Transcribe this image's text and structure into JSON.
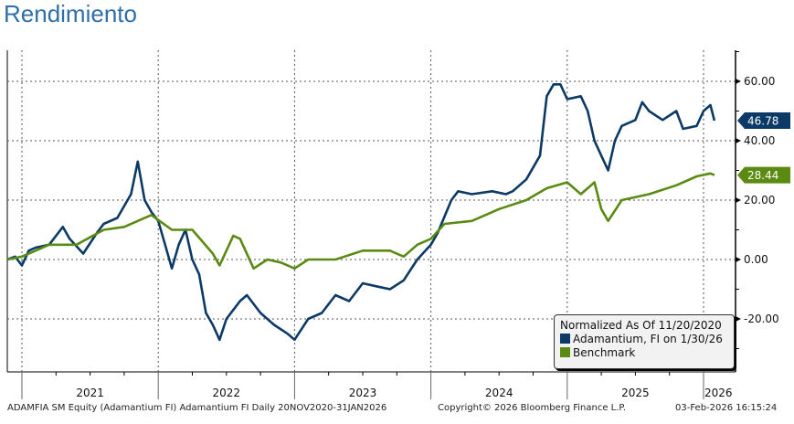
{
  "chart_data": {
    "type": "line",
    "title": "Rendimiento",
    "x_tick_labels": [
      "2021",
      "2022",
      "2023",
      "2024",
      "2025",
      "2026"
    ],
    "y_tick_labels": [
      "60.00",
      "40.00",
      "20.00",
      "0.00",
      "-20.00"
    ],
    "y_ticks": [
      60,
      40,
      20,
      0,
      -20
    ],
    "ylim": [
      -37,
      72
    ],
    "xlim": [
      2020.89,
      2026.19
    ],
    "grid": true,
    "legend": {
      "placement": "bottom-right",
      "title": "Normalized As Of 11/20/2020",
      "entries": [
        "Adamantium, FI on 1/30/26",
        "Benchmark"
      ]
    },
    "series": [
      {
        "name": "Adamantium, FI on 1/30/26",
        "color": "#0b3a66",
        "last_label": "46.78",
        "x": [
          2020.89,
          2020.95,
          2021.0,
          2021.05,
          2021.1,
          2021.2,
          2021.3,
          2021.35,
          2021.45,
          2021.55,
          2021.6,
          2021.7,
          2021.75,
          2021.8,
          2021.85,
          2021.9,
          2021.95,
          2022.0,
          2022.05,
          2022.1,
          2022.15,
          2022.2,
          2022.25,
          2022.3,
          2022.35,
          2022.4,
          2022.45,
          2022.5,
          2022.6,
          2022.65,
          2022.75,
          2022.85,
          2022.95,
          2023.0,
          2023.1,
          2023.2,
          2023.3,
          2023.4,
          2023.5,
          2023.6,
          2023.7,
          2023.8,
          2023.9,
          2024.0,
          2024.05,
          2024.15,
          2024.2,
          2024.3,
          2024.45,
          2024.55,
          2024.6,
          2024.7,
          2024.8,
          2024.85,
          2024.9,
          2024.95,
          2025.0,
          2025.1,
          2025.15,
          2025.2,
          2025.25,
          2025.3,
          2025.35,
          2025.4,
          2025.5,
          2025.55,
          2025.6,
          2025.7,
          2025.8,
          2025.85,
          2025.95,
          2026.0,
          2026.05,
          2026.08
        ],
        "y": [
          0,
          1,
          -2,
          3,
          4,
          5,
          11,
          7,
          2,
          9,
          12,
          14,
          18,
          22,
          33,
          20,
          16,
          13,
          5,
          -3,
          5,
          10,
          0,
          -5,
          -18,
          -22,
          -27,
          -20,
          -14,
          -12,
          -18,
          -22,
          -25,
          -27,
          -20,
          -18,
          -12,
          -14,
          -8,
          -9,
          -10,
          -7,
          0,
          5,
          9,
          20,
          23,
          22,
          23,
          22,
          23,
          27,
          35,
          55,
          59,
          59,
          54,
          55,
          50,
          40,
          35,
          30,
          40,
          45,
          47,
          53,
          50,
          47,
          50,
          44,
          45,
          50,
          52,
          46.78
        ]
      },
      {
        "name": "Benchmark",
        "color": "#5b8a12",
        "last_label": "28.44",
        "x": [
          2020.89,
          2021.0,
          2021.2,
          2021.4,
          2021.6,
          2021.75,
          2021.85,
          2021.95,
          2022.1,
          2022.25,
          2022.4,
          2022.45,
          2022.55,
          2022.6,
          2022.7,
          2022.8,
          2022.9,
          2023.0,
          2023.1,
          2023.3,
          2023.5,
          2023.7,
          2023.8,
          2023.9,
          2024.0,
          2024.1,
          2024.3,
          2024.5,
          2024.7,
          2024.85,
          2025.0,
          2025.1,
          2025.2,
          2025.25,
          2025.3,
          2025.4,
          2025.6,
          2025.8,
          2025.95,
          2026.05,
          2026.08
        ],
        "y": [
          0,
          1,
          5,
          5,
          10,
          11,
          13,
          15,
          10,
          10,
          2,
          -2,
          8,
          7,
          -3,
          0,
          -1,
          -3,
          0,
          0,
          3,
          3,
          1,
          5,
          7,
          12,
          13,
          17,
          20,
          24,
          26,
          22,
          26,
          17,
          13,
          20,
          22,
          25,
          28,
          29,
          28.44
        ]
      }
    ]
  },
  "footer": {
    "left": "ADAMFIA SM Equity (Adamantium FI) Adamantium FI Daily 20NOV2020-31JAN2026",
    "center": "Copyright© 2026 Bloomberg Finance L.P.",
    "right": "03-Feb-2026 16:15:24"
  }
}
